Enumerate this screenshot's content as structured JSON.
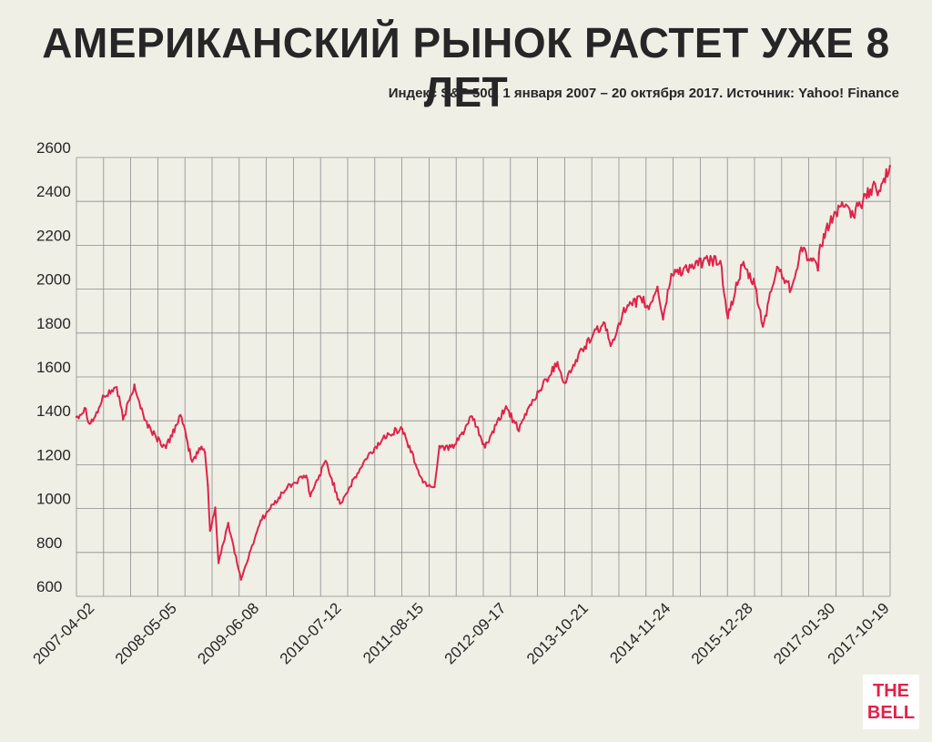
{
  "title": "АМЕРИКАНСКИЙ РЫНОК РАСТЕТ УЖЕ 8 ЛЕТ",
  "subtitle": "Индекс S&P 500, 1 января 2007 – 20 октября 2017. Источник: Yahoo! Finance",
  "logo": {
    "line1": "THE",
    "line2": "BELL"
  },
  "colors": {
    "line": "#e0234a",
    "grid": "#8c8c8c",
    "background": "#efefe6",
    "text": "#262626"
  },
  "chart_data": {
    "type": "line",
    "title": "АМЕРИКАНСКИЙ РЫНОК РАСТЕТ УЖЕ 8 ЛЕТ",
    "xlabel": "",
    "ylabel": "",
    "ylim": [
      600,
      2600
    ],
    "xlim": [
      "2007-01-01",
      "2017-10-20"
    ],
    "y_ticks": [
      600,
      800,
      1000,
      1200,
      1400,
      1600,
      1800,
      2000,
      2200,
      2400,
      2600
    ],
    "x_tick_labels": [
      "2007-04-02",
      "2008-05-05",
      "2009-06-08",
      "2010-07-12",
      "2011-08-15",
      "2012-09-17",
      "2013-10-21",
      "2014-11-24",
      "2015-12-28",
      "2017-01-30",
      "2017-10-19"
    ],
    "grid": true,
    "series": [
      {
        "name": "",
        "x": [
          "2007-01-01",
          "2007-02-15",
          "2007-03-05",
          "2007-04-02",
          "2007-05-15",
          "2007-07-15",
          "2007-08-15",
          "2007-10-09",
          "2007-11-26",
          "2008-01-22",
          "2008-03-10",
          "2008-05-19",
          "2008-07-15",
          "2008-08-29",
          "2008-09-15",
          "2008-09-29",
          "2008-10-10",
          "2008-11-04",
          "2008-11-20",
          "2009-01-06",
          "2009-03-09",
          "2009-06-12",
          "2009-10-19",
          "2010-01-19",
          "2010-02-08",
          "2010-04-23",
          "2010-07-02",
          "2010-11-05",
          "2011-02-18",
          "2011-04-29",
          "2011-08-08",
          "2011-10-03",
          "2011-10-27",
          "2012-01-03",
          "2012-04-02",
          "2012-06-04",
          "2012-09-14",
          "2012-11-15",
          "2013-01-02",
          "2013-05-21",
          "2013-06-24",
          "2013-09-18",
          "2013-12-31",
          "2014-02-03",
          "2014-04-02",
          "2014-06-30",
          "2014-08-07",
          "2014-09-18",
          "2014-10-15",
          "2014-11-24",
          "2015-05-21",
          "2015-07-20",
          "2015-08-25",
          "2015-11-03",
          "2016-01-04",
          "2016-02-11",
          "2016-04-20",
          "2016-06-27",
          "2016-08-15",
          "2016-11-04",
          "2016-11-09",
          "2016-12-13",
          "2017-03-01",
          "2017-04-13",
          "2017-08-08",
          "2017-08-21",
          "2017-10-19"
        ],
        "values": [
          1418,
          1456,
          1387,
          1420,
          1512,
          1553,
          1406,
          1565,
          1407,
          1325,
          1276,
          1426,
          1214,
          1282,
          1255,
          1106,
          899,
          1005,
          752,
          934,
          676,
          946,
          1097,
          1150,
          1056,
          1217,
          1022,
          1225,
          1343,
          1363,
          1119,
          1099,
          1285,
          1277,
          1419,
          1278,
          1466,
          1353,
          1462,
          1667,
          1573,
          1725,
          1848,
          1741,
          1890,
          1960,
          1909,
          2011,
          1862,
          2069,
          2131,
          2128,
          1867,
          2109,
          2012,
          1829,
          2102,
          2000,
          2190,
          2085,
          2163,
          2270,
          2396,
          2328,
          2480,
          2428,
          2562
        ]
      }
    ]
  }
}
